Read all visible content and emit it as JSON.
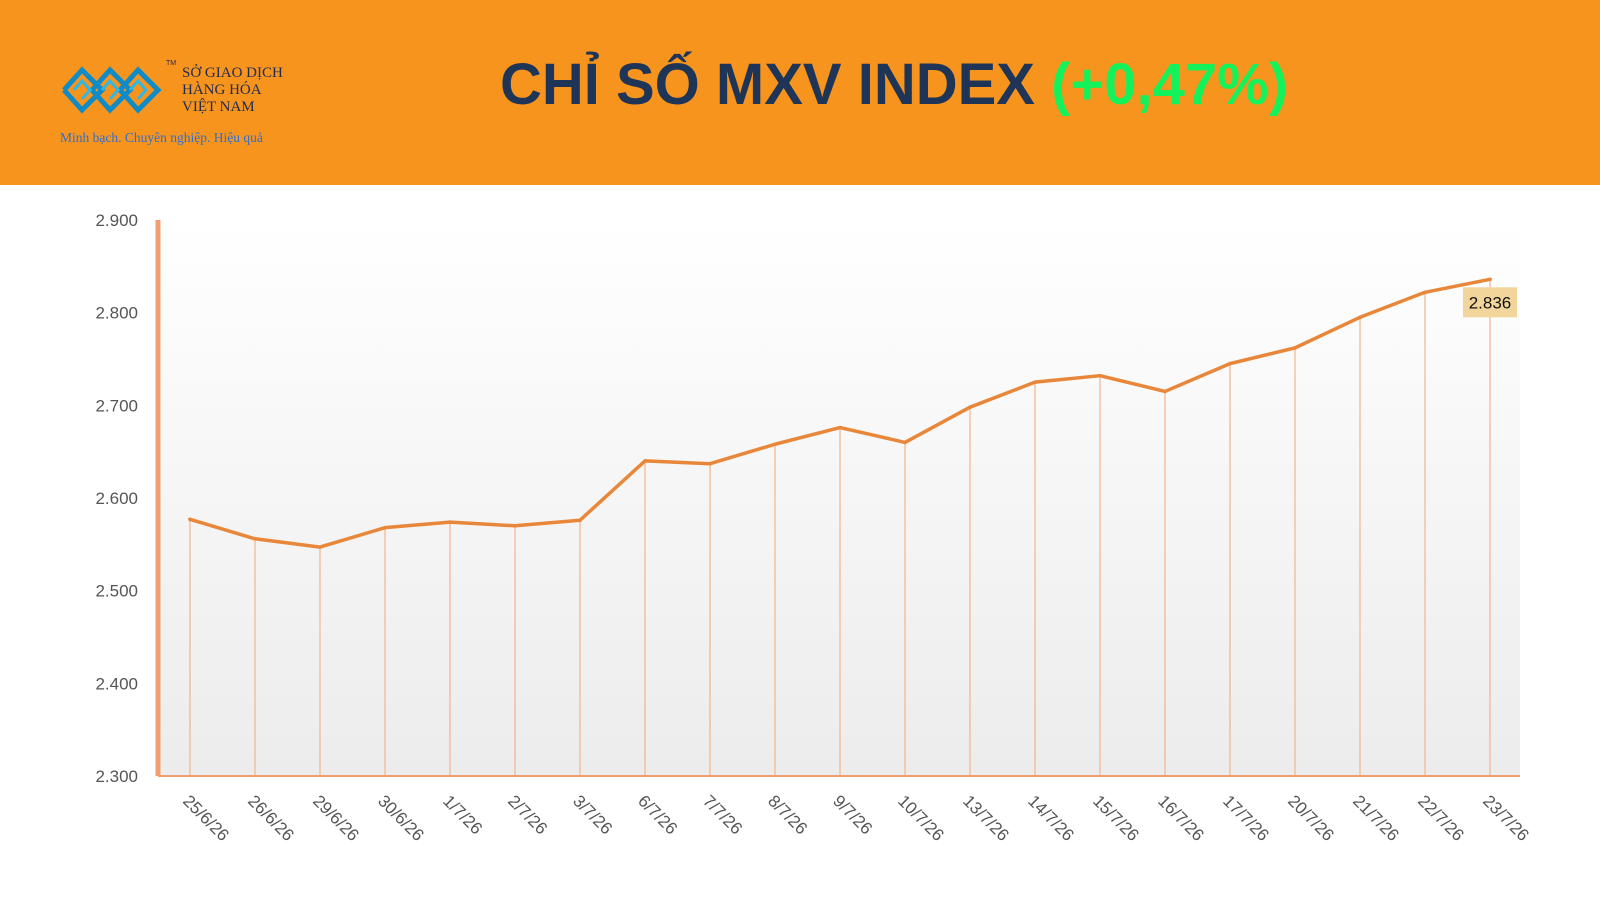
{
  "header": {
    "logo": {
      "line1": "SỞ GIAO DỊCH",
      "line2": "HÀNG HÓA",
      "line3": "VIỆT NAM",
      "tm": "TM",
      "slogan": "Minh bạch. Chuyên nghiệp. Hiệu quả",
      "icon": "mxv-logo-icon"
    },
    "title_main": "CHỈ SỐ MXV INDEX ",
    "title_change": "(+0,47%)"
  },
  "colors": {
    "header_bg": "#f7941d",
    "title": "#1f3557",
    "change": "#13f25a",
    "line": "#e8873a",
    "callout_bg": "#f2d59b"
  },
  "chart_data": {
    "type": "area",
    "title": "",
    "xlabel": "",
    "ylabel": "",
    "ylim": [
      2300,
      2900
    ],
    "yticks": [
      2300,
      2400,
      2500,
      2600,
      2700,
      2800,
      2900
    ],
    "ytick_labels": [
      "2.300",
      "2.400",
      "2.500",
      "2.600",
      "2.700",
      "2.800",
      "2.900"
    ],
    "grid": false,
    "legend": "none",
    "categories": [
      "25/6/26",
      "26/6/26",
      "29/6/26",
      "30/6/26",
      "1/7/26",
      "2/7/26",
      "3/7/26",
      "6/7/26",
      "7/7/26",
      "8/7/26",
      "9/7/26",
      "10/7/26",
      "13/7/26",
      "14/7/26",
      "15/7/26",
      "16/7/26",
      "17/7/26",
      "20/7/26",
      "21/7/26",
      "22/7/26",
      "23/7/26"
    ],
    "series": [
      {
        "values": [
          2577,
          2556,
          2547,
          2568,
          2574,
          2570,
          2576,
          2640,
          2637,
          2658,
          2676,
          2660,
          2698,
          2725,
          2732,
          2715,
          2745,
          2762,
          2795,
          2822,
          2836
        ]
      }
    ],
    "callout": {
      "label": "2.836",
      "index": 20
    }
  }
}
